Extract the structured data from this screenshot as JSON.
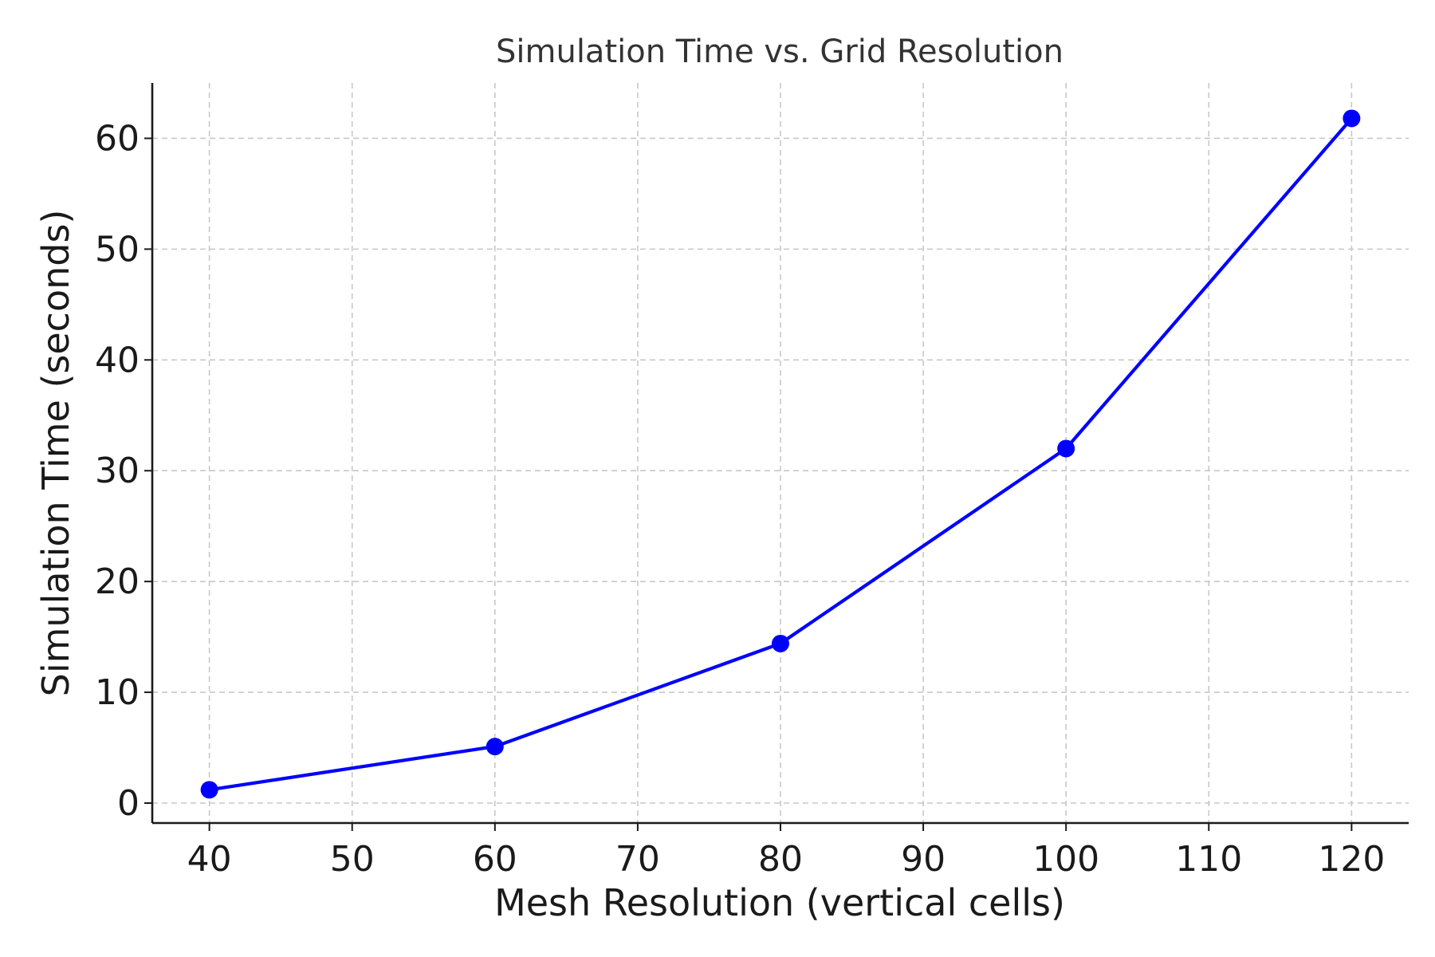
{
  "chart_data": {
    "type": "line",
    "title": "Simulation Time vs. Grid Resolution",
    "xlabel": "Mesh Resolution (vertical cells)",
    "ylabel": "Simulation Time (seconds)",
    "xlim": [
      36,
      124
    ],
    "ylim": [
      -1.8,
      65
    ],
    "x_ticks": [
      40,
      50,
      60,
      70,
      80,
      90,
      100,
      110,
      120
    ],
    "y_ticks": [
      0,
      10,
      20,
      30,
      40,
      50,
      60
    ],
    "grid": true,
    "legend": "none",
    "series": [
      {
        "color": "#0000ff",
        "marker": "circle",
        "x": [
          40,
          60,
          80,
          100,
          120
        ],
        "y": [
          1.2,
          5.1,
          14.4,
          32.0,
          61.8
        ]
      }
    ]
  }
}
